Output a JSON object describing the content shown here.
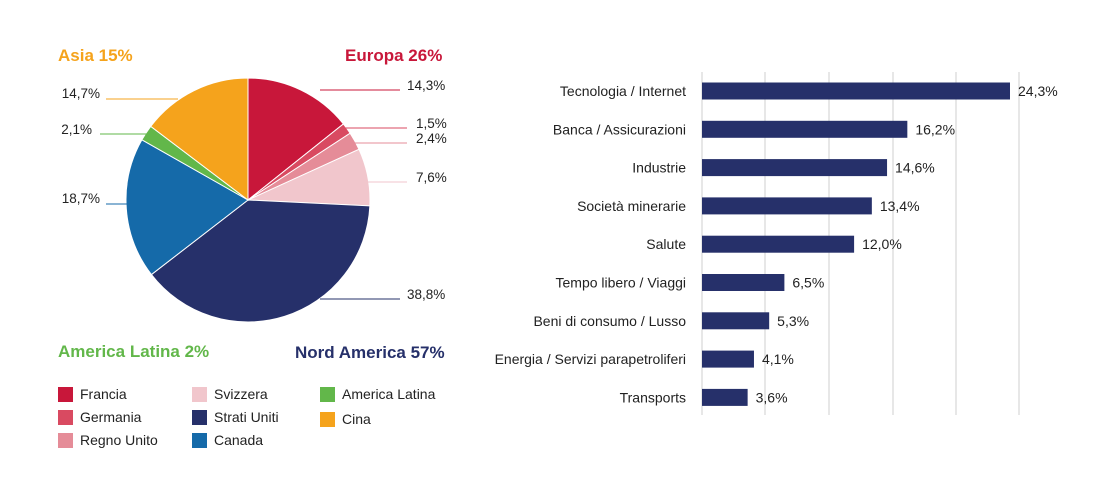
{
  "chart_data": [
    {
      "type": "pie",
      "regions": [
        {
          "label": "Europa 26%",
          "color": "#c8173a"
        },
        {
          "label": "Asia 15%",
          "color": "#f5a31c"
        },
        {
          "label": "America Latina 2%",
          "color": "#62b74a"
        },
        {
          "label": "Nord America 57%",
          "color": "#26306a"
        }
      ],
      "slices": [
        {
          "name": "Francia",
          "value": 14.3,
          "label": "14,3%",
          "color": "#c8173a"
        },
        {
          "name": "Germania",
          "value": 1.5,
          "label": "1,5%",
          "color": "#d94a61"
        },
        {
          "name": "Regno Unito",
          "value": 2.4,
          "label": "2,4%",
          "color": "#e58c98"
        },
        {
          "name": "Svizzera",
          "value": 7.6,
          "label": "7,6%",
          "color": "#f1c6cc"
        },
        {
          "name": "Strati Uniti",
          "value": 38.8,
          "label": "38,8%",
          "color": "#26306a"
        },
        {
          "name": "Canada",
          "value": 18.7,
          "label": "18,7%",
          "color": "#156aa9"
        },
        {
          "name": "America Latina",
          "value": 2.1,
          "label": "2,1%",
          "color": "#62b74a"
        },
        {
          "name": "Cina",
          "value": 14.7,
          "label": "14,7%",
          "color": "#f5a31c"
        }
      ]
    },
    {
      "type": "bar",
      "orientation": "horizontal",
      "color": "#26306a",
      "categories": [
        "Tecnologia / Internet",
        "Banca / Assicurazioni",
        "Industrie",
        "Società minerarie",
        "Salute",
        "Tempo libero / Viaggi",
        "Beni di consumo / Lusso",
        "Energia / Servizi parapetroliferi",
        "Transports"
      ],
      "values": [
        24.3,
        16.2,
        14.6,
        13.4,
        12.0,
        6.5,
        5.3,
        4.1,
        3.6
      ],
      "value_labels": [
        "24,3%",
        "16,2%",
        "14,6%",
        "13,4%",
        "12,0%",
        "6,5%",
        "5,3%",
        "4,1%",
        "3,6%"
      ],
      "xlim": [
        0,
        25
      ],
      "grid": true
    }
  ],
  "legend": [
    {
      "label": "Francia",
      "color": "#c8173a"
    },
    {
      "label": "Germania",
      "color": "#d94a61"
    },
    {
      "label": "Regno Unito",
      "color": "#e58c98"
    },
    {
      "label": "Svizzera",
      "color": "#f1c6cc"
    },
    {
      "label": "Strati Uniti",
      "color": "#26306a"
    },
    {
      "label": "Canada",
      "color": "#156aa9"
    },
    {
      "label": "America Latina",
      "color": "#62b74a"
    },
    {
      "label": "Cina",
      "color": "#f5a31c"
    }
  ]
}
